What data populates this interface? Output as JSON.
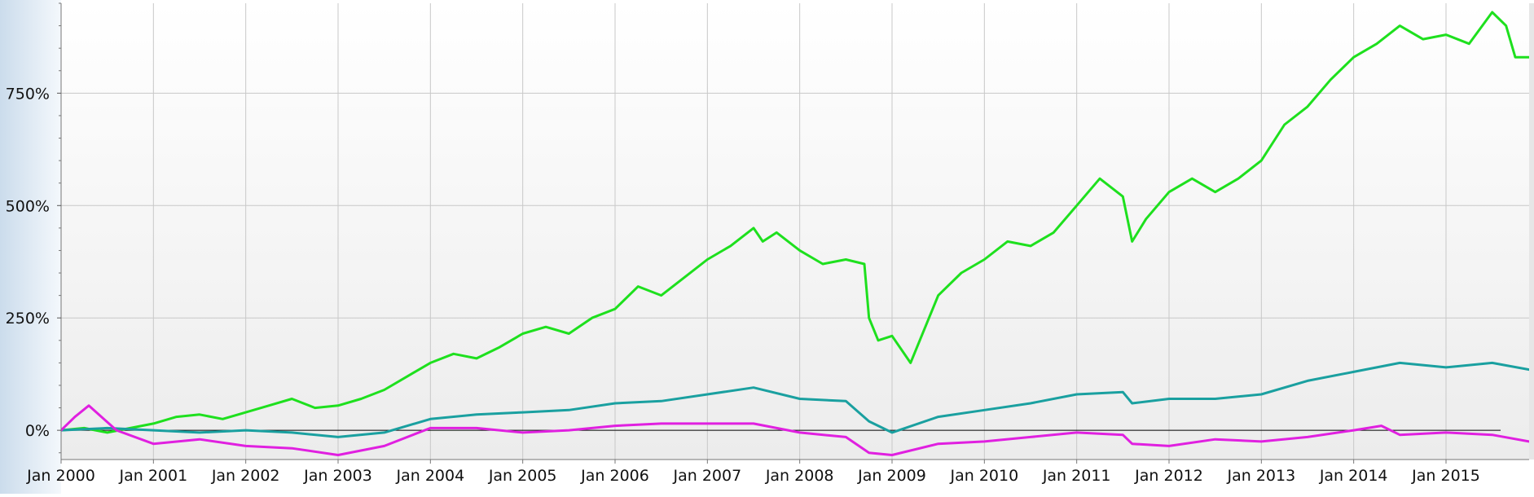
{
  "chart_data": {
    "type": "line",
    "title": "",
    "xlabel": "",
    "ylabel": "",
    "x_range": [
      2000.0,
      2015.9
    ],
    "ylim": [
      -65,
      950
    ],
    "y_ticks": [
      {
        "value": 0,
        "label": "0%"
      },
      {
        "value": 250,
        "label": "250%"
      },
      {
        "value": 500,
        "label": "500%"
      },
      {
        "value": 750,
        "label": "750%"
      }
    ],
    "x_ticks": [
      {
        "value": 2000,
        "label": "Jan 2000"
      },
      {
        "value": 2001,
        "label": "Jan 2001"
      },
      {
        "value": 2002,
        "label": "Jan 2002"
      },
      {
        "value": 2003,
        "label": "Jan 2003"
      },
      {
        "value": 2004,
        "label": "Jan 2004"
      },
      {
        "value": 2005,
        "label": "Jan 2005"
      },
      {
        "value": 2006,
        "label": "Jan 2006"
      },
      {
        "value": 2007,
        "label": "Jan 2007"
      },
      {
        "value": 2008,
        "label": "Jan 2008"
      },
      {
        "value": 2009,
        "label": "Jan 2009"
      },
      {
        "value": 2010,
        "label": "Jan 2010"
      },
      {
        "value": 2011,
        "label": "Jan 2011"
      },
      {
        "value": 2012,
        "label": "Jan 2012"
      },
      {
        "value": 2013,
        "label": "Jan 2013"
      },
      {
        "value": 2014,
        "label": "Jan 2014"
      },
      {
        "value": 2015,
        "label": "Jan 2015"
      }
    ],
    "grid": true,
    "zero_line": true,
    "series": [
      {
        "color": "#1ee01e",
        "x": [
          2000.0,
          2000.25,
          2000.5,
          2000.75,
          2001.0,
          2001.25,
          2001.5,
          2001.75,
          2002.0,
          2002.25,
          2002.5,
          2002.75,
          2003.0,
          2003.25,
          2003.5,
          2003.75,
          2004.0,
          2004.25,
          2004.5,
          2004.75,
          2005.0,
          2005.25,
          2005.5,
          2005.75,
          2006.0,
          2006.25,
          2006.5,
          2006.75,
          2007.0,
          2007.25,
          2007.5,
          2007.6,
          2007.75,
          2008.0,
          2008.25,
          2008.5,
          2008.7,
          2008.75,
          2008.85,
          2009.0,
          2009.2,
          2009.5,
          2009.75,
          2010.0,
          2010.25,
          2010.5,
          2010.75,
          2011.0,
          2011.25,
          2011.5,
          2011.6,
          2011.75,
          2012.0,
          2012.25,
          2012.5,
          2012.75,
          2013.0,
          2013.25,
          2013.5,
          2013.75,
          2014.0,
          2014.25,
          2014.5,
          2014.75,
          2015.0,
          2015.25,
          2015.5,
          2015.65,
          2015.75,
          2015.9
        ],
        "y": [
          0,
          5,
          -5,
          5,
          15,
          30,
          35,
          25,
          40,
          55,
          70,
          50,
          55,
          70,
          90,
          120,
          150,
          170,
          160,
          185,
          215,
          230,
          215,
          250,
          270,
          320,
          300,
          340,
          380,
          410,
          450,
          420,
          440,
          400,
          370,
          380,
          370,
          250,
          200,
          210,
          150,
          300,
          350,
          380,
          420,
          410,
          440,
          500,
          560,
          520,
          420,
          470,
          530,
          560,
          530,
          560,
          600,
          680,
          720,
          780,
          830,
          860,
          900,
          870,
          880,
          860,
          930,
          900,
          830,
          830
        ]
      },
      {
        "color": "#1aa0a0",
        "x": [
          2000.0,
          2000.5,
          2001.0,
          2001.5,
          2002.0,
          2002.5,
          2003.0,
          2003.5,
          2004.0,
          2004.5,
          2005.0,
          2005.5,
          2006.0,
          2006.5,
          2007.0,
          2007.5,
          2008.0,
          2008.5,
          2008.75,
          2009.0,
          2009.5,
          2010.0,
          2010.5,
          2011.0,
          2011.5,
          2011.6,
          2012.0,
          2012.5,
          2013.0,
          2013.5,
          2014.0,
          2014.5,
          2015.0,
          2015.5,
          2015.9
        ],
        "y": [
          0,
          5,
          0,
          -5,
          0,
          -5,
          -15,
          -5,
          25,
          35,
          40,
          45,
          60,
          65,
          80,
          95,
          70,
          65,
          20,
          -5,
          30,
          45,
          60,
          80,
          85,
          60,
          70,
          70,
          80,
          110,
          130,
          150,
          140,
          150,
          135
        ]
      },
      {
        "color": "#e020e0",
        "x": [
          2000.0,
          2000.15,
          2000.3,
          2000.6,
          2001.0,
          2001.5,
          2002.0,
          2002.5,
          2003.0,
          2003.5,
          2004.0,
          2004.5,
          2005.0,
          2005.5,
          2006.0,
          2006.5,
          2007.0,
          2007.5,
          2008.0,
          2008.5,
          2008.75,
          2009.0,
          2009.5,
          2010.0,
          2010.5,
          2011.0,
          2011.5,
          2011.6,
          2012.0,
          2012.5,
          2013.0,
          2013.5,
          2014.0,
          2014.3,
          2014.5,
          2015.0,
          2015.5,
          2015.9
        ],
        "y": [
          0,
          30,
          55,
          0,
          -30,
          -20,
          -35,
          -40,
          -55,
          -35,
          5,
          5,
          -5,
          0,
          10,
          15,
          15,
          15,
          -5,
          -15,
          -50,
          -55,
          -30,
          -25,
          -15,
          -5,
          -10,
          -30,
          -35,
          -20,
          -25,
          -15,
          0,
          10,
          -10,
          -5,
          -10,
          -25
        ]
      }
    ]
  }
}
